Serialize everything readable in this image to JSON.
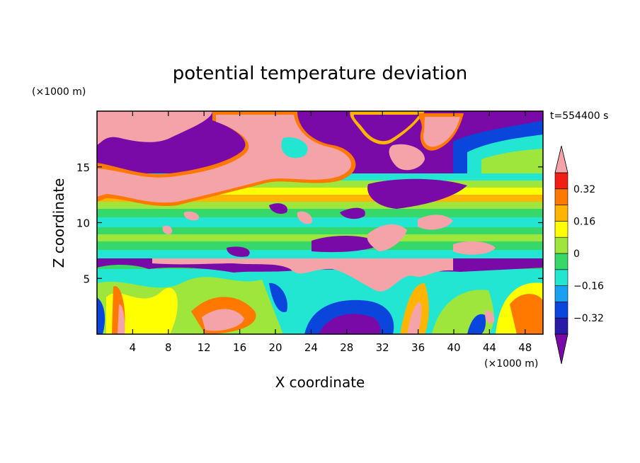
{
  "chart_data": {
    "type": "heatmap",
    "title": "potential temperature deviation",
    "xlabel": "X coordinate",
    "ylabel": "Z coordinate",
    "x_unit": "(×1000 m)",
    "y_unit": "(×1000 m)",
    "time_label": "t=554400 s",
    "xlim": [
      0,
      50
    ],
    "ylim": [
      0,
      20
    ],
    "x_ticks": [
      4,
      8,
      12,
      16,
      20,
      24,
      28,
      32,
      36,
      40,
      44,
      48
    ],
    "y_ticks": [
      5,
      10,
      15
    ],
    "colorbar": {
      "levels": [
        -0.4,
        -0.32,
        -0.24,
        -0.16,
        -0.08,
        0,
        0.08,
        0.16,
        0.24,
        0.32,
        0.4
      ],
      "tick_values": [
        0.32,
        0.16,
        0,
        -0.16,
        -0.32
      ],
      "tick_labels": [
        "0.32",
        "0.16",
        "0",
        "−0.16",
        "−0.32"
      ],
      "colors": [
        "#7a0aa8",
        "#2a1aa8",
        "#0a46dc",
        "#1aa0f0",
        "#22e6d2",
        "#36d86a",
        "#9ee63c",
        "#ffff00",
        "#ffb400",
        "#ff7800",
        "#f01e14",
        "#f4a4a8"
      ],
      "extend": "both"
    },
    "grid": false,
    "legend": "right"
  }
}
